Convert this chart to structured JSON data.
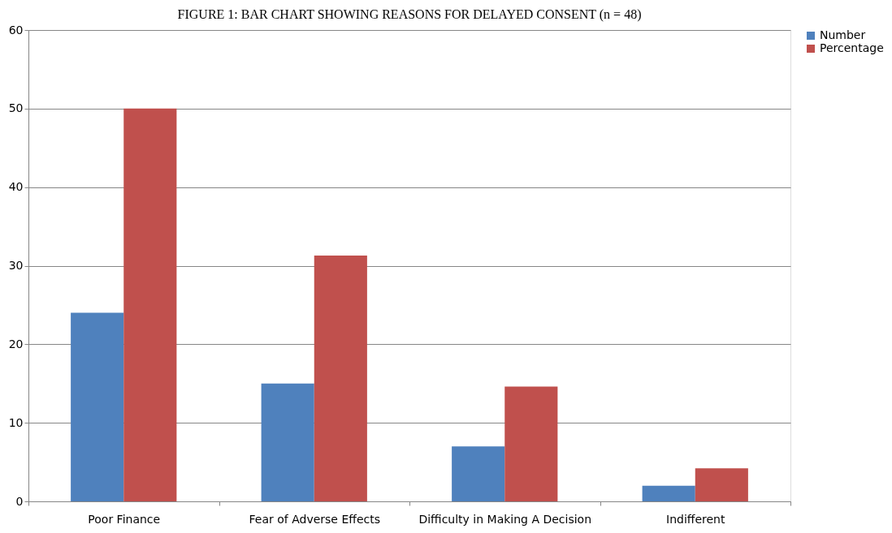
{
  "chart_data": {
    "type": "bar",
    "title": "FIGURE 1: BAR CHART SHOWING REASONS FOR DELAYED CONSENT (n = 48)",
    "categories": [
      "Poor Finance",
      "Fear of Adverse Effects",
      "Difficulty in Making A Decision",
      "Indifferent"
    ],
    "series": [
      {
        "name": "Number",
        "color": "#4f81bd",
        "values": [
          24,
          15,
          7,
          2
        ]
      },
      {
        "name": "Percentage",
        "color": "#c0504d",
        "values": [
          50,
          31.3,
          14.6,
          4.2
        ]
      }
    ],
    "ylim": [
      0,
      60
    ],
    "yticks": [
      0,
      10,
      20,
      30,
      40,
      50,
      60
    ],
    "grid": "y",
    "legend": "right"
  }
}
